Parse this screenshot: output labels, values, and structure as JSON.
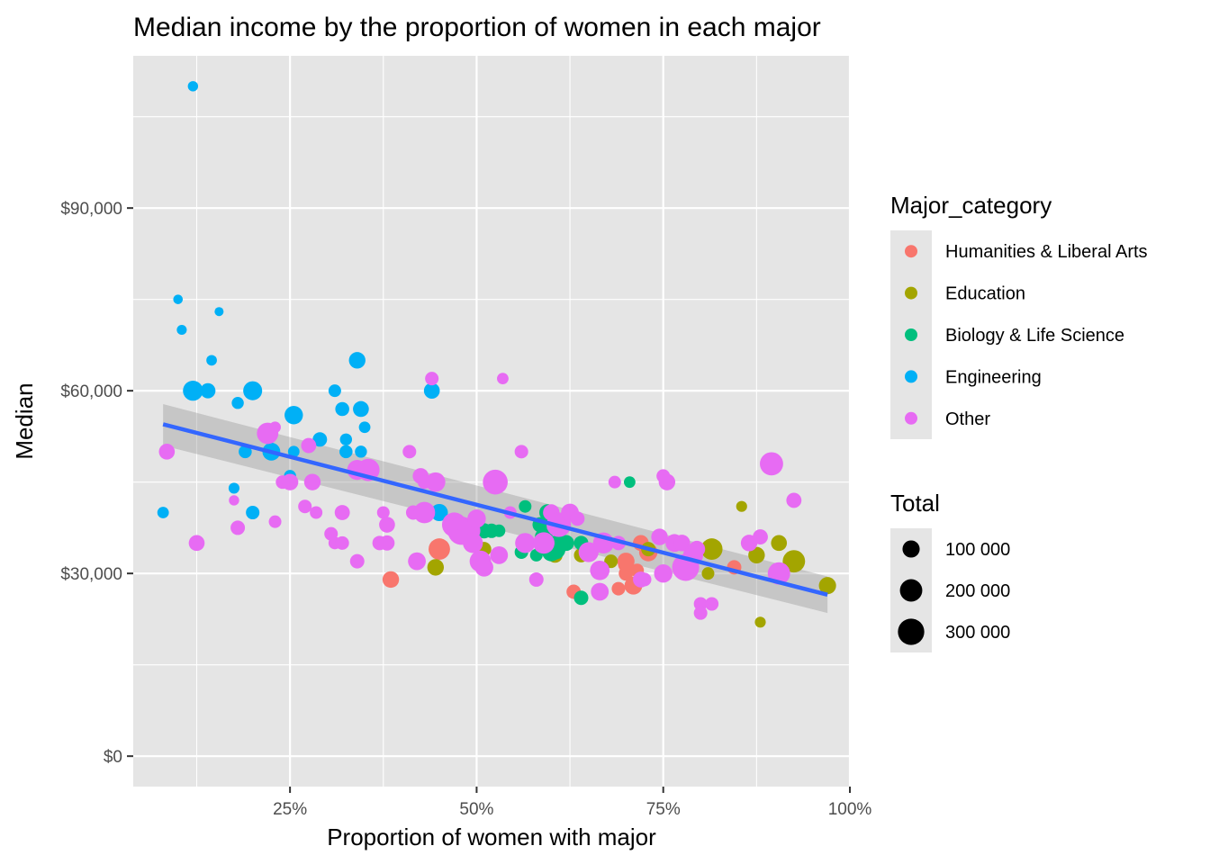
{
  "chart_data": {
    "type": "scatter",
    "title": "Median income by the proportion of women in each major",
    "xlabel": "Proportion of women with major",
    "ylabel": "Median",
    "xlim": [
      0.04,
      1.0
    ],
    "ylim": [
      -5000,
      115000
    ],
    "x_ticks": [
      {
        "value": 0.25,
        "label": "25%"
      },
      {
        "value": 0.5,
        "label": "50%"
      },
      {
        "value": 0.75,
        "label": "75%"
      },
      {
        "value": 1.0,
        "label": "100%"
      }
    ],
    "y_ticks": [
      {
        "value": 0,
        "label": "$0"
      },
      {
        "value": 30000,
        "label": "$30,000"
      },
      {
        "value": 60000,
        "label": "$60,000"
      },
      {
        "value": 90000,
        "label": "$90,000"
      }
    ],
    "grid": true,
    "legend_position": "right",
    "colors": {
      "panel": "#e5e5e5",
      "grid": "#ffffff",
      "trend_line": "#3366ff",
      "confidence_band": "#999999"
    },
    "color_legend": {
      "title": "Major_category",
      "entries": [
        {
          "name": "Humanities & Liberal Arts",
          "color": "#F8766D"
        },
        {
          "name": "Education",
          "color": "#A3A500"
        },
        {
          "name": "Biology & Life Science",
          "color": "#00BF7D"
        },
        {
          "name": "Engineering",
          "color": "#00B0F6"
        },
        {
          "name": "Other",
          "color": "#E76BF3"
        }
      ]
    },
    "size_legend": {
      "title": "Total",
      "entries": [
        {
          "value": 100000,
          "label": "100 000"
        },
        {
          "value": 200000,
          "label": "200 000"
        },
        {
          "value": 300000,
          "label": "300 000"
        }
      ]
    },
    "trend_line": {
      "x": [
        0.08,
        0.97
      ],
      "y": [
        54500,
        26500
      ],
      "band_lower": [
        51000,
        23500
      ],
      "band_upper": [
        57800,
        29500
      ]
    },
    "series": [
      {
        "name": "Engineering",
        "color": "#00B0F6",
        "points": [
          [
            0.12,
            110000,
            20000
          ],
          [
            0.1,
            75000,
            15000
          ],
          [
            0.105,
            70000,
            18000
          ],
          [
            0.155,
            73000,
            12000
          ],
          [
            0.145,
            65000,
            22000
          ],
          [
            0.08,
            40000,
            30000
          ],
          [
            0.12,
            60000,
            150000
          ],
          [
            0.14,
            60000,
            70000
          ],
          [
            0.18,
            58000,
            35000
          ],
          [
            0.2,
            60000,
            130000
          ],
          [
            0.175,
            44000,
            25000
          ],
          [
            0.19,
            50000,
            45000
          ],
          [
            0.2,
            40000,
            50000
          ],
          [
            0.225,
            50000,
            110000
          ],
          [
            0.255,
            56000,
            120000
          ],
          [
            0.255,
            50000,
            30000
          ],
          [
            0.25,
            46000,
            35000
          ],
          [
            0.29,
            52000,
            60000
          ],
          [
            0.31,
            60000,
            40000
          ],
          [
            0.32,
            57000,
            55000
          ],
          [
            0.325,
            52000,
            35000
          ],
          [
            0.325,
            50000,
            45000
          ],
          [
            0.34,
            65000,
            90000
          ],
          [
            0.345,
            57000,
            80000
          ],
          [
            0.345,
            50000,
            35000
          ],
          [
            0.35,
            54000,
            30000
          ],
          [
            0.44,
            60000,
            80000
          ],
          [
            0.45,
            40000,
            100000
          ]
        ]
      },
      {
        "name": "Humanities & Liberal Arts",
        "color": "#F8766D",
        "points": [
          [
            0.385,
            29000,
            90000
          ],
          [
            0.42,
            32000,
            90000
          ],
          [
            0.43,
            40000,
            30000
          ],
          [
            0.45,
            34000,
            180000
          ],
          [
            0.63,
            27000,
            60000
          ],
          [
            0.69,
            27500,
            50000
          ],
          [
            0.7,
            30000,
            60000
          ],
          [
            0.7,
            31500,
            80000
          ],
          [
            0.7,
            32000,
            100000
          ],
          [
            0.71,
            28000,
            110000
          ],
          [
            0.715,
            30500,
            50000
          ],
          [
            0.72,
            35000,
            80000
          ],
          [
            0.73,
            33500,
            120000
          ],
          [
            0.845,
            31000,
            60000
          ]
        ]
      },
      {
        "name": "Education",
        "color": "#A3A500",
        "points": [
          [
            0.445,
            31000,
            90000
          ],
          [
            0.51,
            34000,
            60000
          ],
          [
            0.605,
            33000,
            70000
          ],
          [
            0.64,
            33000,
            60000
          ],
          [
            0.68,
            32000,
            50000
          ],
          [
            0.73,
            34000,
            60000
          ],
          [
            0.81,
            30000,
            40000
          ],
          [
            0.815,
            34000,
            180000
          ],
          [
            0.855,
            41000,
            25000
          ],
          [
            0.875,
            33000,
            90000
          ],
          [
            0.88,
            22000,
            25000
          ],
          [
            0.905,
            35000,
            80000
          ],
          [
            0.925,
            32000,
            200000
          ],
          [
            0.97,
            28000,
            100000
          ]
        ]
      },
      {
        "name": "Biology & Life Science",
        "color": "#00BF7D",
        "points": [
          [
            0.51,
            37000,
            70000
          ],
          [
            0.52,
            37000,
            60000
          ],
          [
            0.53,
            37000,
            40000
          ],
          [
            0.56,
            33500,
            50000
          ],
          [
            0.565,
            41000,
            40000
          ],
          [
            0.58,
            33000,
            40000
          ],
          [
            0.585,
            38000,
            70000
          ],
          [
            0.59,
            36000,
            110000
          ],
          [
            0.595,
            40000,
            90000
          ],
          [
            0.6,
            33500,
            120000
          ],
          [
            0.605,
            34000,
            170000
          ],
          [
            0.61,
            35000,
            110000
          ],
          [
            0.62,
            35000,
            80000
          ],
          [
            0.64,
            35000,
            60000
          ],
          [
            0.64,
            26000,
            60000
          ],
          [
            0.705,
            45000,
            30000
          ]
        ]
      },
      {
        "name": "Other",
        "color": "#E76BF3",
        "points": [
          [
            0.085,
            50000,
            80000
          ],
          [
            0.125,
            35000,
            80000
          ],
          [
            0.175,
            42000,
            20000
          ],
          [
            0.18,
            37500,
            60000
          ],
          [
            0.22,
            53000,
            180000
          ],
          [
            0.23,
            54000,
            30000
          ],
          [
            0.23,
            38500,
            40000
          ],
          [
            0.24,
            45000,
            50000
          ],
          [
            0.25,
            45000,
            90000
          ],
          [
            0.27,
            41000,
            50000
          ],
          [
            0.275,
            51000,
            70000
          ],
          [
            0.28,
            45000,
            90000
          ],
          [
            0.285,
            40000,
            40000
          ],
          [
            0.305,
            36500,
            50000
          ],
          [
            0.31,
            35000,
            40000
          ],
          [
            0.32,
            40000,
            70000
          ],
          [
            0.32,
            35000,
            50000
          ],
          [
            0.34,
            32000,
            60000
          ],
          [
            0.34,
            47000,
            150000
          ],
          [
            0.355,
            47000,
            200000
          ],
          [
            0.37,
            35000,
            60000
          ],
          [
            0.375,
            40000,
            40000
          ],
          [
            0.38,
            35000,
            70000
          ],
          [
            0.38,
            38000,
            80000
          ],
          [
            0.41,
            50000,
            50000
          ],
          [
            0.415,
            40000,
            60000
          ],
          [
            0.42,
            32000,
            110000
          ],
          [
            0.425,
            46000,
            80000
          ],
          [
            0.43,
            45000,
            50000
          ],
          [
            0.43,
            40000,
            180000
          ],
          [
            0.44,
            62000,
            50000
          ],
          [
            0.445,
            45000,
            140000
          ],
          [
            0.47,
            38000,
            250000
          ],
          [
            0.48,
            37000,
            350000
          ],
          [
            0.49,
            37000,
            200000
          ],
          [
            0.495,
            35000,
            150000
          ],
          [
            0.5,
            39000,
            120000
          ],
          [
            0.505,
            32000,
            180000
          ],
          [
            0.51,
            31000,
            120000
          ],
          [
            0.525,
            45000,
            260000
          ],
          [
            0.53,
            33000,
            110000
          ],
          [
            0.535,
            62000,
            30000
          ],
          [
            0.545,
            40000,
            40000
          ],
          [
            0.56,
            50000,
            50000
          ],
          [
            0.565,
            35000,
            150000
          ],
          [
            0.58,
            29000,
            60000
          ],
          [
            0.59,
            35000,
            180000
          ],
          [
            0.6,
            40000,
            90000
          ],
          [
            0.61,
            38000,
            250000
          ],
          [
            0.625,
            40000,
            110000
          ],
          [
            0.635,
            39000,
            60000
          ],
          [
            0.65,
            33500,
            150000
          ],
          [
            0.665,
            27000,
            110000
          ],
          [
            0.665,
            30500,
            140000
          ],
          [
            0.67,
            35000,
            170000
          ],
          [
            0.685,
            45000,
            40000
          ],
          [
            0.69,
            35000,
            60000
          ],
          [
            0.72,
            29000,
            80000
          ],
          [
            0.725,
            29000,
            50000
          ],
          [
            0.745,
            36000,
            90000
          ],
          [
            0.75,
            30000,
            120000
          ],
          [
            0.75,
            46000,
            50000
          ],
          [
            0.755,
            45000,
            90000
          ],
          [
            0.765,
            35000,
            110000
          ],
          [
            0.775,
            35000,
            90000
          ],
          [
            0.78,
            31000,
            320000
          ],
          [
            0.79,
            33000,
            150000
          ],
          [
            0.795,
            34000,
            90000
          ],
          [
            0.8,
            25000,
            50000
          ],
          [
            0.8,
            23500,
            50000
          ],
          [
            0.815,
            25000,
            50000
          ],
          [
            0.865,
            35000,
            90000
          ],
          [
            0.88,
            36000,
            70000
          ],
          [
            0.895,
            48000,
            220000
          ],
          [
            0.905,
            30000,
            200000
          ],
          [
            0.925,
            42000,
            70000
          ]
        ]
      }
    ]
  }
}
